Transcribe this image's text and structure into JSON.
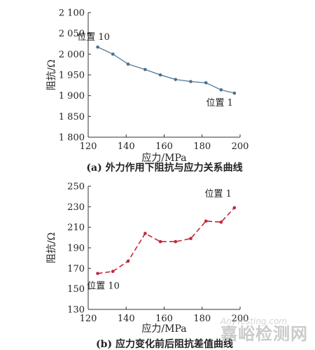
{
  "chart_data": [
    {
      "type": "line",
      "caption": "(a) 外力作用下阻抗与应力关系曲线",
      "xlabel": "应力/MPa",
      "ylabel": "阻抗/Ω",
      "xlim": [
        120,
        200
      ],
      "ylim": [
        1800,
        2100
      ],
      "xticks": [
        120,
        140,
        160,
        180,
        200
      ],
      "yticks": [
        1800,
        1850,
        1900,
        1950,
        2000,
        2050,
        2100
      ],
      "xtick_labels": [
        "120",
        "140",
        "160",
        "180",
        "200"
      ],
      "ytick_labels": [
        "1 800",
        "1 850",
        "1 900",
        "1 950",
        "2 000",
        "2 050",
        "2 100"
      ],
      "line_color": "#4a6f8c",
      "line_style": "solid",
      "series": [
        {
          "x": [
            125,
            133,
            141,
            150,
            158,
            166,
            174,
            182,
            190,
            197
          ],
          "values": [
            2017,
            2000,
            1976,
            1963,
            1950,
            1939,
            1934,
            1931,
            1914,
            1906
          ]
        }
      ],
      "annotations": [
        {
          "text": "位置 10",
          "x": 125,
          "y": 2017,
          "placement": "above-left"
        },
        {
          "text": "位置 1",
          "x": 197,
          "y": 1906,
          "placement": "below-left"
        }
      ]
    },
    {
      "type": "line",
      "caption": "(b) 应力变化前后阻抗差值曲线",
      "xlabel": "应力/MPa",
      "ylabel": "阻抗/Ω",
      "xlim": [
        120,
        200
      ],
      "ylim": [
        130,
        250
      ],
      "xticks": [
        120,
        140,
        160,
        180,
        200
      ],
      "yticks": [
        130,
        150,
        170,
        190,
        210,
        230,
        250
      ],
      "xtick_labels": [
        "120",
        "140",
        "160",
        "180",
        "200"
      ],
      "ytick_labels": [
        "130",
        "150",
        "170",
        "190",
        "210",
        "230",
        "250"
      ],
      "line_color": "#c0283c",
      "line_style": "dashed",
      "series": [
        {
          "x": [
            125,
            133,
            141,
            150,
            158,
            166,
            174,
            182,
            190,
            197
          ],
          "values": [
            165,
            167,
            177,
            204,
            196,
            196,
            199,
            216,
            215,
            229
          ]
        }
      ],
      "annotations": [
        {
          "text": "位置 10",
          "x": 125,
          "y": 165,
          "placement": "below-left"
        },
        {
          "text": "位置 1",
          "x": 197,
          "y": 229,
          "placement": "above-left"
        }
      ]
    }
  ],
  "watermark": {
    "main": "嘉峪检测网",
    "sub": "AnyTesting.com"
  }
}
